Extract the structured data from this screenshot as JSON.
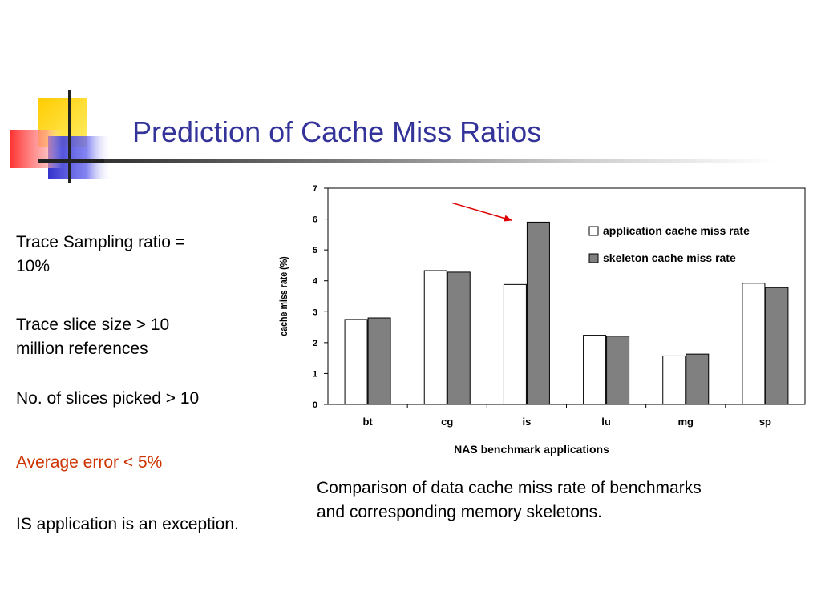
{
  "slide": {
    "title": "Prediction of Cache Miss Ratios",
    "bullets": [
      {
        "text": "Trace Sampling ratio = 10%",
        "lines": [
          "Trace Sampling ratio =",
          "10%"
        ],
        "color": "#000000"
      },
      {
        "text": "Trace slice size > 10 million references",
        "lines": [
          "Trace slice size > 10",
          "million references"
        ],
        "color": "#000000"
      },
      {
        "text": "No. of slices picked > 10",
        "lines": [
          "No. of slices picked > 10"
        ],
        "color": "#000000"
      },
      {
        "text": "Average error < 5%",
        "lines": [
          "Average error < 5%"
        ],
        "color": "#cc3300"
      },
      {
        "text": "IS application is an exception.",
        "lines": [
          "IS application is an exception."
        ],
        "color": "#000000"
      }
    ],
    "caption_lines": [
      "Comparison of data cache miss rate of benchmarks",
      "and corresponding memory skeletons."
    ],
    "title_color": "#333399"
  },
  "chart_data": {
    "type": "bar",
    "categories": [
      "bt",
      "cg",
      "is",
      "lu",
      "mg",
      "sp"
    ],
    "series": [
      {
        "name": "application cache miss rate",
        "values": [
          2.75,
          4.33,
          3.88,
          2.24,
          1.57,
          3.92
        ],
        "color": "#ffffff"
      },
      {
        "name": "skeleton cache miss rate",
        "values": [
          2.8,
          4.28,
          5.9,
          2.21,
          1.63,
          3.78
        ],
        "color": "#808080"
      }
    ],
    "title": "",
    "xlabel": "NAS benchmark applications",
    "ylabel": "cache miss rate (%)",
    "ylim": [
      0,
      7
    ],
    "yticks": [
      0,
      1,
      2,
      3,
      4,
      5,
      6,
      7
    ],
    "grid": false,
    "legend": "top-right",
    "annotation": {
      "type": "arrow",
      "target_category": "is",
      "color": "#dd0000"
    }
  }
}
